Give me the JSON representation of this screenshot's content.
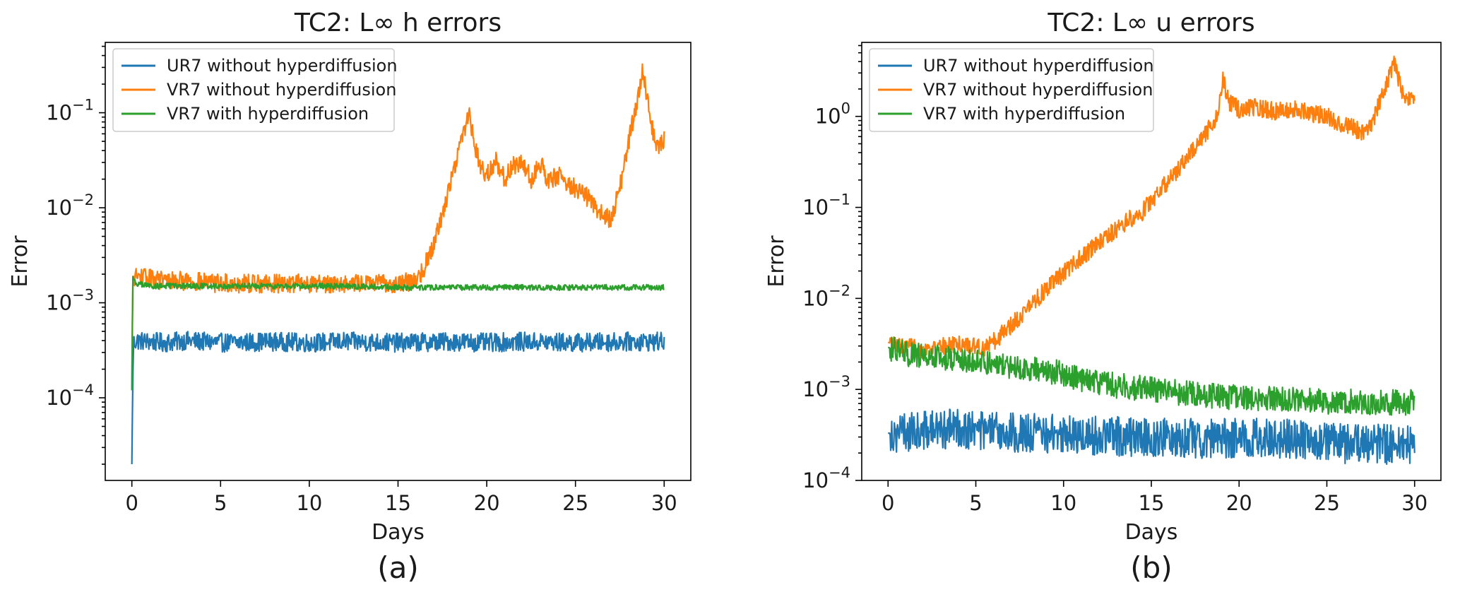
{
  "colors": {
    "ur7": "#1f77b4",
    "vr7_nohyp": "#ff7f0e",
    "vr7_hyp": "#2ca02c"
  },
  "chart_data": [
    {
      "type": "line",
      "title": "TC2: L∞ h errors",
      "panel_label": "(a)",
      "xlabel": "Days",
      "ylabel": "Error",
      "yscale": "log",
      "xlim": [
        -1.5,
        31.5
      ],
      "ylim": [
        1.35e-05,
        0.55
      ],
      "xticks": [
        0,
        5,
        10,
        15,
        20,
        25,
        30
      ],
      "xtick_labels": [
        "0",
        "5",
        "10",
        "15",
        "20",
        "25",
        "30"
      ],
      "yticks": [
        0.0001,
        0.001,
        0.01,
        0.1
      ],
      "ytick_labels": [
        {
          "base": "10",
          "exp": "−4"
        },
        {
          "base": "10",
          "exp": "−3"
        },
        {
          "base": "10",
          "exp": "−2"
        },
        {
          "base": "10",
          "exp": "−1"
        }
      ],
      "legend_position": "upper-left",
      "series": [
        {
          "name": "UR7 without hyperdiffusion",
          "color": "#1f77b4",
          "x": [
            0,
            0.05,
            0.1,
            0.3,
            1,
            2,
            3,
            5,
            8,
            10,
            12,
            15,
            18,
            20,
            22,
            25,
            28,
            30
          ],
          "y": [
            2e-05,
            0.00015,
            0.00038,
            0.0004,
            0.00039,
            0.00038,
            0.0004,
            0.00038,
            0.00039,
            0.00038,
            0.00039,
            0.00038,
            0.00039,
            0.00038,
            0.00039,
            0.00038,
            0.00039,
            0.00039
          ],
          "noise": 0.1
        },
        {
          "name": "VR7 without hyperdiffusion",
          "color": "#ff7f0e",
          "x": [
            0,
            0.05,
            0.2,
            1,
            2,
            3,
            5,
            8,
            10,
            12,
            14,
            15,
            16,
            16.5,
            17,
            17.5,
            18,
            18.5,
            19,
            19.3,
            19.6,
            20,
            20.5,
            21,
            21.5,
            22,
            22.5,
            23,
            23.5,
            24,
            24.5,
            25,
            25.5,
            26,
            26.5,
            27,
            27.5,
            28,
            28.5,
            28.8,
            29,
            29.3,
            29.6,
            30
          ],
          "y": [
            0.00012,
            0.0019,
            0.0019,
            0.0018,
            0.0017,
            0.0017,
            0.0016,
            0.0016,
            0.0016,
            0.0016,
            0.0016,
            0.0016,
            0.0017,
            0.0024,
            0.0042,
            0.0085,
            0.02,
            0.047,
            0.1,
            0.05,
            0.028,
            0.022,
            0.032,
            0.02,
            0.028,
            0.03,
            0.02,
            0.03,
            0.019,
            0.022,
            0.018,
            0.016,
            0.014,
            0.011,
            0.0085,
            0.0075,
            0.016,
            0.05,
            0.14,
            0.28,
            0.15,
            0.07,
            0.045,
            0.052
          ],
          "noise": 0.1
        },
        {
          "name": "VR7 with hyperdiffusion",
          "color": "#2ca02c",
          "x": [
            0,
            0.05,
            0.2,
            1,
            2,
            5,
            8,
            10,
            12,
            15,
            18,
            20,
            22,
            25,
            28,
            30
          ],
          "y": [
            0.00012,
            0.0019,
            0.0016,
            0.0015,
            0.0015,
            0.0015,
            0.0015,
            0.0015,
            0.0015,
            0.00145,
            0.00145,
            0.00145,
            0.00145,
            0.00145,
            0.00145,
            0.00145
          ],
          "noise": 0.03
        }
      ]
    },
    {
      "type": "line",
      "title": "TC2: L∞ u errors",
      "panel_label": "(b)",
      "xlabel": "Days",
      "ylabel": "Error",
      "yscale": "log",
      "xlim": [
        -1.5,
        31.5
      ],
      "ylim": [
        0.0001,
        6.5
      ],
      "xticks": [
        0,
        5,
        10,
        15,
        20,
        25,
        30
      ],
      "xtick_labels": [
        "0",
        "5",
        "10",
        "15",
        "20",
        "25",
        "30"
      ],
      "yticks": [
        0.0001,
        0.001,
        0.01,
        0.1,
        1
      ],
      "ytick_labels": [
        {
          "base": "10",
          "exp": "−4"
        },
        {
          "base": "10",
          "exp": "−3"
        },
        {
          "base": "10",
          "exp": "−2"
        },
        {
          "base": "10",
          "exp": "−1"
        },
        {
          "base": "10",
          "exp": "0"
        }
      ],
      "legend_position": "upper-left",
      "series": [
        {
          "name": "UR7 without hyperdiffusion",
          "color": "#1f77b4",
          "x": [
            0,
            2,
            4,
            6,
            8,
            10,
            12,
            15,
            18,
            20,
            22,
            24,
            26,
            28,
            30
          ],
          "y": [
            0.00033,
            0.00035,
            0.00038,
            0.00034,
            0.00033,
            0.00032,
            0.00031,
            0.0003,
            0.00029,
            0.00029,
            0.00029,
            0.00028,
            0.00025,
            0.00025,
            0.00025
          ],
          "noise": 0.22
        },
        {
          "name": "VR7 without hyperdiffusion",
          "color": "#ff7f0e",
          "x": [
            0,
            0.5,
            1,
            2,
            3,
            4,
            5,
            5.5,
            6,
            7,
            8,
            9,
            10,
            11,
            12,
            13,
            14,
            14.5,
            15,
            16,
            17,
            18,
            18.8,
            19.1,
            19.4,
            20,
            21,
            22,
            23,
            24,
            25,
            26,
            26.5,
            27,
            27.5,
            28,
            28.5,
            28.8,
            29,
            29.3,
            29.6,
            30
          ],
          "y": [
            0.0033,
            0.003,
            0.0029,
            0.0028,
            0.0029,
            0.0032,
            0.003,
            0.0029,
            0.0033,
            0.0051,
            0.008,
            0.0125,
            0.019,
            0.028,
            0.04,
            0.057,
            0.08,
            0.09,
            0.12,
            0.2,
            0.34,
            0.6,
            1.05,
            2.7,
            1.4,
            1.2,
            1.25,
            1.15,
            1.2,
            1.1,
            1.0,
            0.8,
            0.75,
            0.65,
            0.8,
            1.4,
            2.5,
            4.0,
            3.0,
            1.9,
            1.6,
            1.5
          ],
          "noise": 0.1
        },
        {
          "name": "VR7 with hyperdiffusion",
          "color": "#2ca02c",
          "x": [
            0,
            1,
            2,
            3,
            4,
            5,
            6,
            7,
            8,
            9,
            10,
            11,
            12,
            13,
            14,
            15,
            16,
            17,
            18,
            19,
            20,
            22,
            24,
            26,
            28,
            30
          ],
          "y": [
            0.0029,
            0.0025,
            0.0023,
            0.0022,
            0.0021,
            0.002,
            0.0019,
            0.0018,
            0.0017,
            0.0016,
            0.0015,
            0.0013,
            0.0012,
            0.0011,
            0.00105,
            0.001,
            0.00095,
            0.0009,
            0.00085,
            0.00085,
            0.0008,
            0.00078,
            0.00075,
            0.00073,
            0.00072,
            0.00072
          ],
          "noise": 0.14
        }
      ]
    }
  ]
}
